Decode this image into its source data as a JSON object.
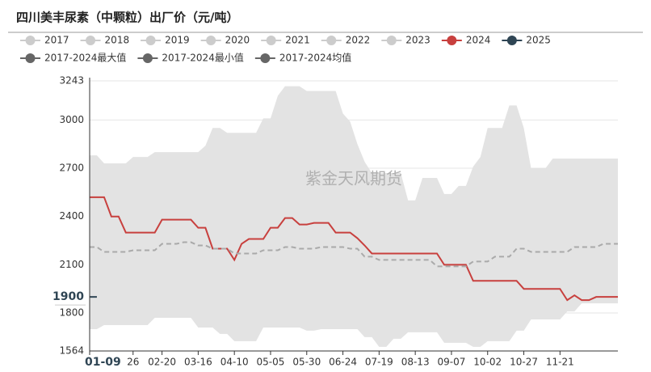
{
  "chart_data": {
    "type": "line",
    "title": "四川美丰尿素（中颗粒）出厂价（元/吨）",
    "watermark": "紫金天风期货",
    "y_pointer": 1900,
    "band_color": "#e3e3e3",
    "ylim": [
      1564,
      3243
    ],
    "yticks": [
      1564,
      1800,
      2100,
      2400,
      2700,
      3000,
      3243
    ],
    "grid": true,
    "categories": [
      "01-09",
      null,
      null,
      null,
      null,
      null,
      "26",
      null,
      null,
      null,
      "02-20",
      null,
      null,
      null,
      null,
      "03-16",
      null,
      null,
      null,
      null,
      "04-10",
      null,
      null,
      null,
      null,
      "05-05",
      null,
      null,
      null,
      null,
      "05-30",
      null,
      null,
      null,
      null,
      "06-24",
      null,
      null,
      null,
      null,
      "07-19",
      null,
      null,
      null,
      null,
      "08-13",
      null,
      null,
      null,
      null,
      "09-07",
      null,
      null,
      null,
      null,
      "10-02",
      null,
      null,
      null,
      null,
      "10-27",
      null,
      null,
      null,
      null,
      "11-21",
      null,
      null,
      null,
      null,
      null,
      null,
      null,
      null
    ],
    "series": [
      {
        "name": "2017",
        "color": "#cccccc",
        "visible": false
      },
      {
        "name": "2018",
        "color": "#cccccc",
        "visible": false
      },
      {
        "name": "2019",
        "color": "#cccccc",
        "visible": false
      },
      {
        "name": "2020",
        "color": "#cccccc",
        "visible": false
      },
      {
        "name": "2021",
        "color": "#cccccc",
        "visible": false
      },
      {
        "name": "2022",
        "color": "#cccccc",
        "visible": false
      },
      {
        "name": "2023",
        "color": "#cccccc",
        "visible": false
      },
      {
        "name": "2024",
        "color": "#c8403e",
        "values": [
          2520,
          2520,
          2520,
          2400,
          2400,
          2300,
          2300,
          2300,
          2300,
          2300,
          2380,
          2380,
          2380,
          2380,
          2380,
          2330,
          2330,
          2200,
          2200,
          2200,
          2130,
          2230,
          2260,
          2260,
          2260,
          2330,
          2330,
          2390,
          2390,
          2350,
          2350,
          2360,
          2360,
          2360,
          2300,
          2300,
          2300,
          2265,
          2220,
          2170,
          2170,
          2170,
          2170,
          2170,
          2170,
          2170,
          2170,
          2170,
          2170,
          2100,
          2100,
          2100,
          2100,
          2000,
          2000,
          2000,
          2000,
          2000,
          2000,
          2000,
          1950,
          1950,
          1950,
          1950,
          1950,
          1950,
          1880,
          1910,
          1880,
          1880,
          1900,
          1900,
          1900,
          1900
        ]
      },
      {
        "name": "2025",
        "color": "#2f4554",
        "values": [
          1900,
          1900,
          null,
          null,
          null,
          null,
          null,
          null,
          null,
          null,
          null,
          null,
          null,
          null,
          null,
          null,
          null,
          null,
          null,
          null,
          null,
          null,
          null,
          null,
          null,
          null,
          null,
          null,
          null,
          null,
          null,
          null,
          null,
          null,
          null,
          null,
          null,
          null,
          null,
          null,
          null,
          null,
          null,
          null,
          null,
          null,
          null,
          null,
          null,
          null,
          null,
          null,
          null,
          null,
          null,
          null,
          null,
          null,
          null,
          null,
          null,
          null,
          null,
          null,
          null,
          null,
          null,
          null,
          null,
          null,
          null,
          null,
          null,
          null
        ]
      },
      {
        "name": "2017-2024最大值",
        "color": "#666666",
        "draw": "band-upper",
        "values": [
          2780,
          2780,
          2730,
          2730,
          2730,
          2730,
          2770,
          2770,
          2770,
          2800,
          2800,
          2800,
          2800,
          2800,
          2800,
          2800,
          2840,
          2950,
          2950,
          2920,
          2920,
          2920,
          2920,
          2920,
          3010,
          3010,
          3150,
          3210,
          3210,
          3210,
          3180,
          3180,
          3180,
          3180,
          3180,
          3040,
          2990,
          2850,
          2740,
          2670,
          2670,
          2670,
          2670,
          2670,
          2500,
          2500,
          2640,
          2640,
          2640,
          2540,
          2540,
          2590,
          2590,
          2710,
          2770,
          2950,
          2950,
          2950,
          3090,
          3090,
          2950,
          2700,
          2700,
          2700,
          2760,
          2760,
          2760,
          2760,
          2760,
          2760,
          2760,
          2760,
          2760,
          2760
        ]
      },
      {
        "name": "2017-2024最小值",
        "color": "#666666",
        "draw": "band-lower",
        "values": [
          1700,
          1700,
          1725,
          1725,
          1725,
          1725,
          1725,
          1725,
          1725,
          1770,
          1770,
          1770,
          1770,
          1770,
          1770,
          1710,
          1710,
          1710,
          1670,
          1670,
          1625,
          1625,
          1625,
          1625,
          1710,
          1710,
          1710,
          1710,
          1710,
          1710,
          1690,
          1690,
          1700,
          1700,
          1700,
          1700,
          1700,
          1700,
          1650,
          1650,
          1590,
          1590,
          1640,
          1640,
          1680,
          1680,
          1680,
          1680,
          1680,
          1615,
          1615,
          1615,
          1615,
          1590,
          1590,
          1625,
          1625,
          1625,
          1625,
          1690,
          1690,
          1760,
          1760,
          1760,
          1760,
          1760,
          1810,
          1810,
          1860,
          1860,
          1860,
          1860,
          1860,
          1860
        ]
      },
      {
        "name": "2017-2024均值",
        "color": "#666666",
        "line_color": "#aaaaaa",
        "dashed": true,
        "values": [
          2210,
          2210,
          2180,
          2180,
          2180,
          2180,
          2190,
          2190,
          2190,
          2190,
          2230,
          2230,
          2230,
          2240,
          2240,
          2220,
          2220,
          2200,
          2200,
          2200,
          2170,
          2170,
          2170,
          2170,
          2190,
          2190,
          2190,
          2210,
          2210,
          2200,
          2200,
          2200,
          2210,
          2210,
          2210,
          2210,
          2200,
          2200,
          2150,
          2150,
          2130,
          2130,
          2130,
          2130,
          2130,
          2130,
          2130,
          2130,
          2090,
          2090,
          2090,
          2090,
          2090,
          2120,
          2120,
          2120,
          2150,
          2150,
          2150,
          2200,
          2200,
          2180,
          2180,
          2180,
          2180,
          2180,
          2180,
          2210,
          2210,
          2210,
          2210,
          2230,
          2230,
          2230
        ]
      }
    ]
  }
}
